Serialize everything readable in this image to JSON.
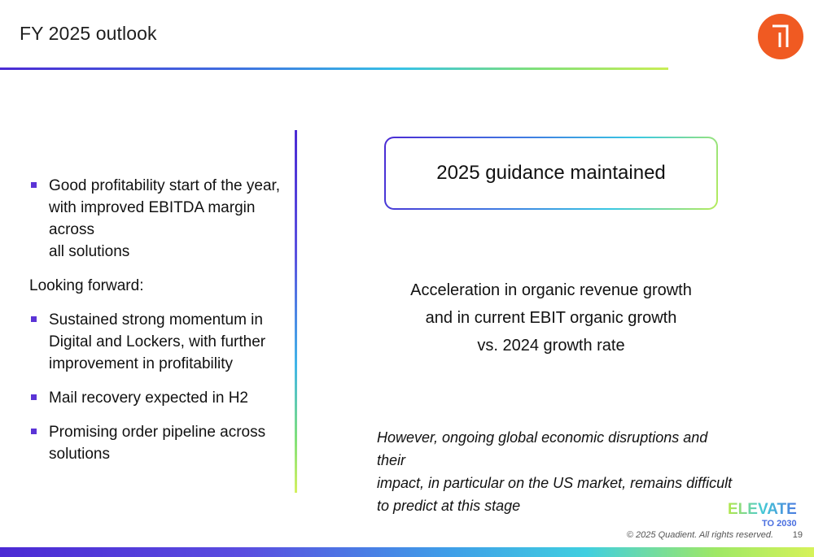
{
  "header": {
    "title": "FY 2025 outlook"
  },
  "left_column": {
    "intro_bullets": [
      {
        "lines": [
          "Good profitability start of the year,",
          "with improved EBITDA margin across",
          "all solutions"
        ]
      }
    ],
    "section_label": "Looking forward:",
    "forward_bullets": [
      {
        "lines": [
          "Sustained strong momentum in",
          "Digital and Lockers, with further",
          "improvement in profitability"
        ]
      },
      {
        "lines": [
          "Mail recovery expected in H2"
        ]
      },
      {
        "lines": [
          "Promising order pipeline across",
          "solutions"
        ]
      }
    ]
  },
  "right_column": {
    "guidance_label": "2025 guidance maintained",
    "outlook_lines": [
      "Acceleration in organic revenue growth",
      "and in current EBIT organic growth",
      "vs. 2024 growth rate"
    ],
    "disclaimer_lines": [
      "However, ongoing global economic disruptions and their",
      "impact, in particular on the US market, remains difficult",
      "to predict at this stage"
    ]
  },
  "footer": {
    "logo_line1": "ELEVATE",
    "logo_line2": "TO 2030",
    "copyright": "© 2025 Quadient. All rights reserved.",
    "page_number": "19"
  },
  "colors": {
    "brand_orange": "#f05a22",
    "bullet_purple": "#5b34d6",
    "gradient_start": "#4b2ad4",
    "gradient_end": "#d6f25a"
  },
  "icons": {
    "brand_logo": "quadient-logo-icon"
  }
}
